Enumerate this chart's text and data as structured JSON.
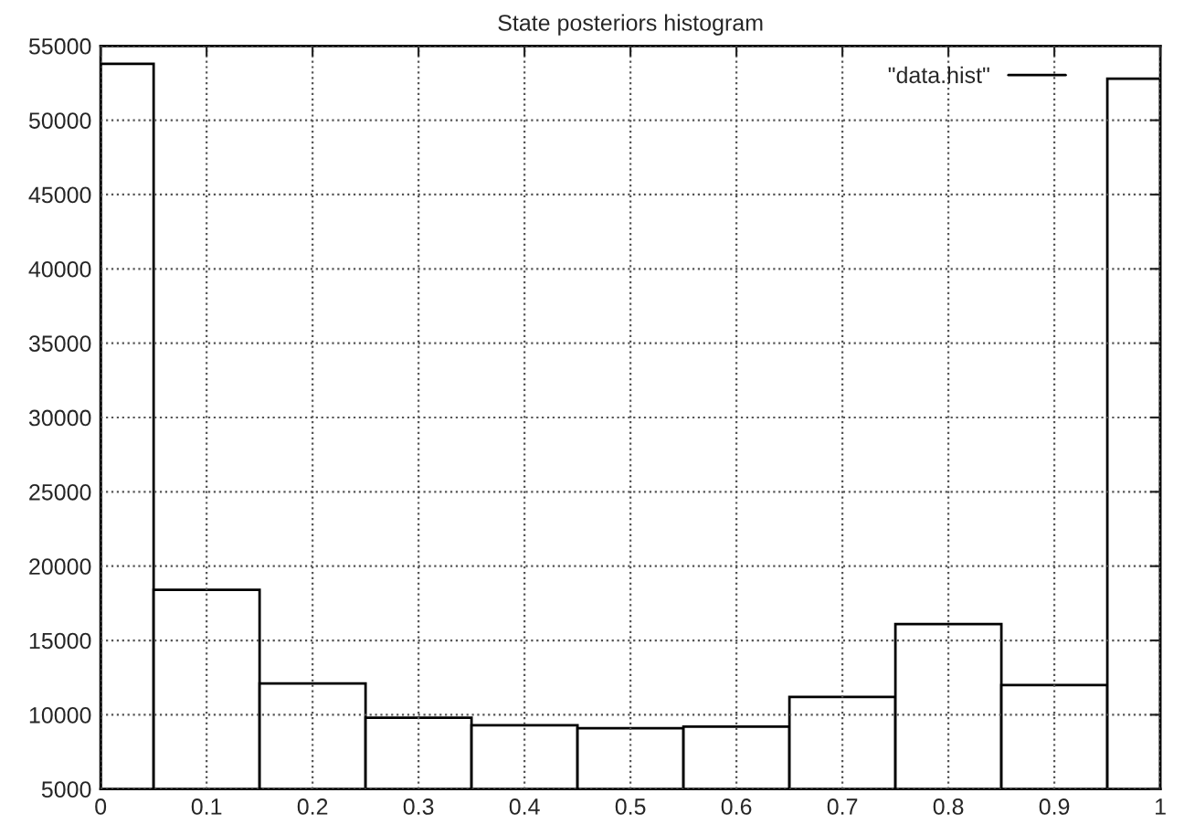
{
  "chart_data": {
    "type": "histogram",
    "title": "State posteriors histogram",
    "bins": [
      0,
      0.05,
      0.15,
      0.25,
      0.35,
      0.45,
      0.55,
      0.65,
      0.75,
      0.85,
      0.95,
      1
    ],
    "series": [
      {
        "name": "\"data.hist\"",
        "color": "#000000",
        "values": [
          53800,
          18400,
          12100,
          9800,
          9300,
          9100,
          9200,
          11200,
          16100,
          12000,
          52800
        ]
      }
    ],
    "xlim": [
      0,
      1
    ],
    "xticks": [
      0,
      0.1,
      0.2,
      0.3,
      0.4,
      0.5,
      0.6,
      0.7,
      0.8,
      0.9,
      1
    ],
    "ylim": [
      5000,
      55000
    ],
    "yticks": [
      5000,
      10000,
      15000,
      20000,
      25000,
      30000,
      35000,
      40000,
      45000,
      50000,
      55000
    ],
    "grid": true,
    "legend": "top right"
  }
}
